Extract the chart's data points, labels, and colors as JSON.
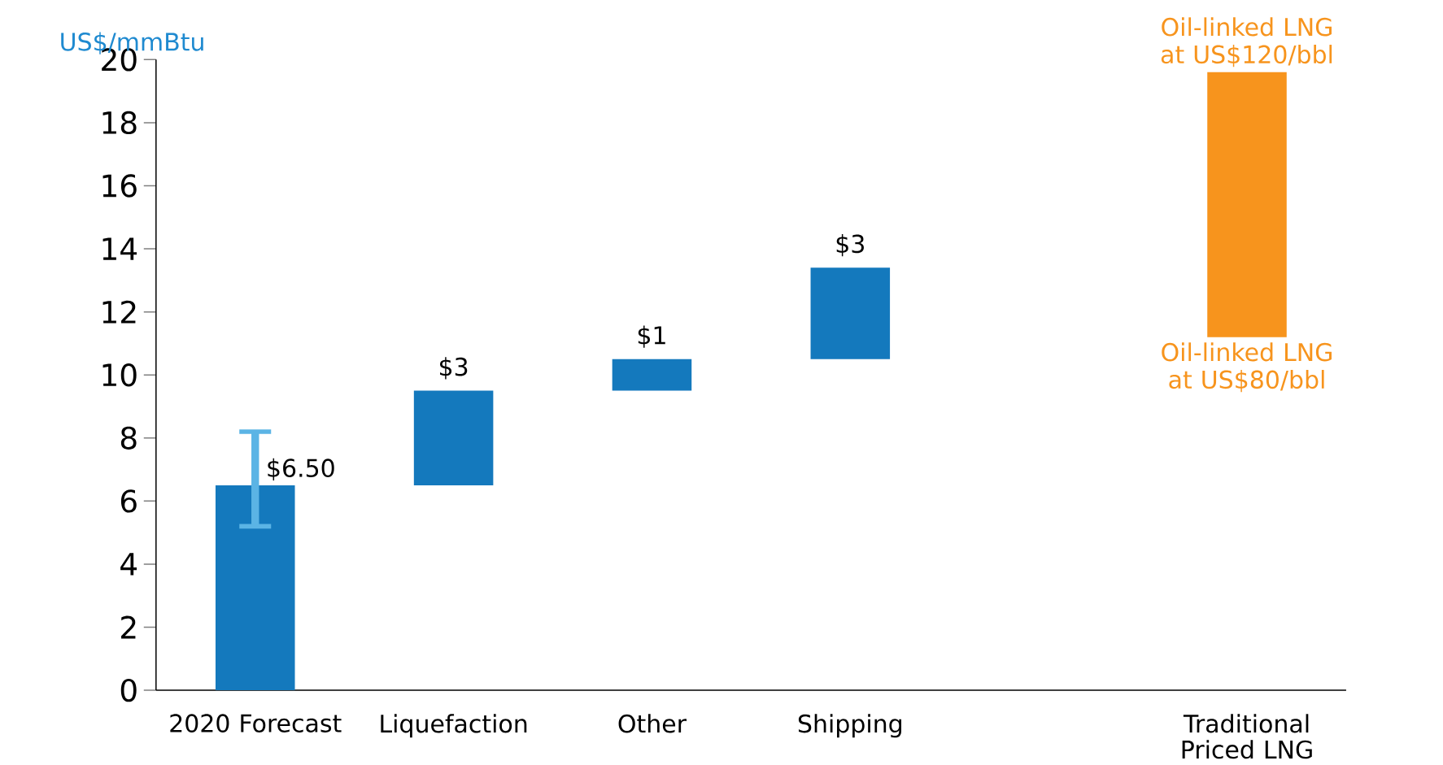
{
  "chart_data": {
    "type": "bar",
    "ylabel": "US$/mmBtu",
    "categories": [
      "2020 Forecast",
      "Liquefaction",
      "Other",
      "Shipping",
      null,
      "Traditional Priced LNG"
    ],
    "values": [
      6.5,
      3,
      1,
      2.9,
      null,
      8.4
    ],
    "base": [
      0,
      6.5,
      9.5,
      10.5,
      null,
      11.2
    ],
    "errors": [
      [
        5.2,
        8.2
      ],
      null,
      null,
      null,
      null,
      null
    ],
    "value_labels": [
      "$6.50",
      "$3",
      "$1",
      "$3",
      null,
      null
    ],
    "colors": [
      "#1479bd",
      "#1479bd",
      "#1479bd",
      "#1479bd",
      "#1479bd",
      "#f7941d"
    ],
    "ylim": [
      0,
      20
    ],
    "yticks": [
      0,
      2,
      4,
      6,
      8,
      10,
      12,
      14,
      16,
      18,
      20
    ],
    "annotations": [
      "Oil-linked LNG at US$120/bbl",
      "Oil-linked LNG at US$80/bbl"
    ]
  }
}
